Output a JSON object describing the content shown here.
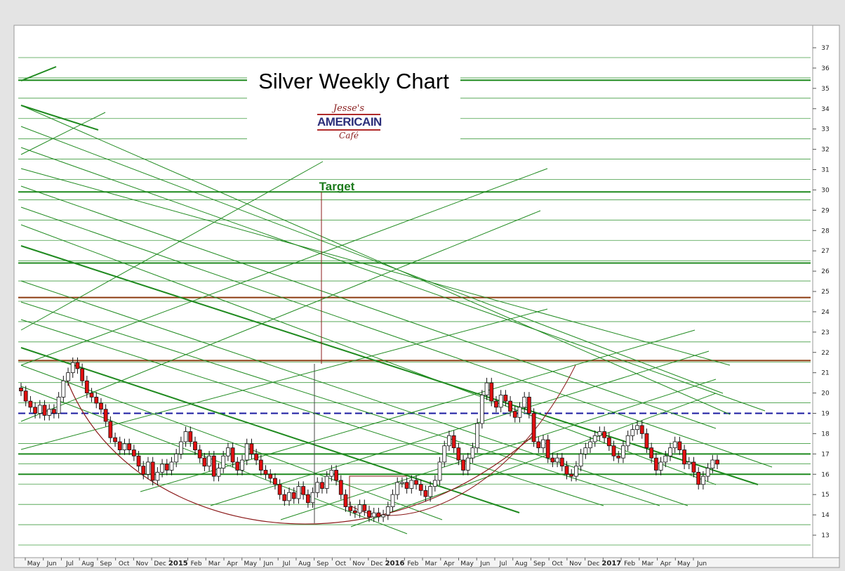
{
  "title": "Silver Weekly Chart",
  "logo": {
    "top": "Jesse's",
    "middle": "AMERICAIN",
    "bottom": "Café"
  },
  "target_label": "Target",
  "colors": {
    "up_candle": "#ffffff",
    "down_candle": "#e01010",
    "trendline": "#1f8a1f",
    "resistance": "#8b3a0f",
    "support": "#1a1aa0",
    "arc": "#8b1a1a"
  },
  "chart_data": {
    "type": "candlestick",
    "title": "Silver Weekly Chart",
    "y_axis": {
      "ticks": [
        13,
        14,
        15,
        16,
        17,
        18,
        19,
        20,
        21,
        22,
        23,
        24,
        25,
        26,
        27,
        28,
        29,
        30,
        31,
        32,
        33,
        34,
        35,
        36,
        37
      ],
      "range": [
        12.5,
        37.5
      ],
      "side": "right"
    },
    "x_axis": {
      "labels": [
        "May",
        "Jun",
        "Jul",
        "Aug",
        "Sep",
        "Oct",
        "Nov",
        "Dec",
        "2015",
        "Feb",
        "Mar",
        "Apr",
        "May",
        "Jun",
        "Jul",
        "Aug",
        "Sep",
        "Oct",
        "Nov",
        "Dec",
        "2016",
        "Feb",
        "Mar",
        "Apr",
        "May",
        "Jun",
        "Jul",
        "Aug",
        "Sep",
        "Oct",
        "Nov",
        "Dec",
        "2017",
        "Feb",
        "Mar",
        "Apr",
        "May",
        "Jun"
      ],
      "years": [
        "2015",
        "2016",
        "2017"
      ]
    },
    "horizontal_levels": [
      {
        "value": 21.6,
        "kind": "resistance"
      },
      {
        "value": 24.7,
        "kind": "resistance"
      },
      {
        "value": 19.0,
        "kind": "support"
      },
      {
        "value": 29.9,
        "kind": "trendline"
      },
      {
        "value": 26.4,
        "kind": "trendline"
      },
      {
        "value": 35.4,
        "kind": "trendline"
      },
      {
        "value": 16.0,
        "kind": "trendline"
      },
      {
        "value": 17.0,
        "kind": "trendline"
      }
    ],
    "annotations": [
      {
        "text": "Target",
        "value": 29.9
      }
    ],
    "closes": [
      20.1,
      19.6,
      19.3,
      19.0,
      19.4,
      18.9,
      19.2,
      19.0,
      19.8,
      20.6,
      21.0,
      21.5,
      21.2,
      20.6,
      20.0,
      19.8,
      19.5,
      19.2,
      18.6,
      17.8,
      17.6,
      17.2,
      17.5,
      17.2,
      16.9,
      16.4,
      16.0,
      16.6,
      15.7,
      16.1,
      16.5,
      16.2,
      16.6,
      17.0,
      17.6,
      18.1,
      17.6,
      17.2,
      16.8,
      16.4,
      16.9,
      15.9,
      16.3,
      16.9,
      17.3,
      16.6,
      16.2,
      16.7,
      17.5,
      17.0,
      16.7,
      16.2,
      16.0,
      15.8,
      15.5,
      15.0,
      14.7,
      15.1,
      14.8,
      15.4,
      15.0,
      14.6,
      15.1,
      15.6,
      15.3,
      15.9,
      16.2,
      15.7,
      15.0,
      14.4,
      14.2,
      14.1,
      14.5,
      14.2,
      13.9,
      14.1,
      13.9,
      14.0,
      14.4,
      15.0,
      15.6,
      15.6,
      15.3,
      15.7,
      15.5,
      15.2,
      14.9,
      15.4,
      15.7,
      16.6,
      17.4,
      17.9,
      17.3,
      16.7,
      16.2,
      16.8,
      17.3,
      18.5,
      19.9,
      20.5,
      19.6,
      19.3,
      19.9,
      19.6,
      19.1,
      18.8,
      19.3,
      19.8,
      19.0,
      17.6,
      17.3,
      17.7,
      16.8,
      16.6,
      16.8,
      16.4,
      16.0,
      15.9,
      16.4,
      17.0,
      17.3,
      17.6,
      17.9,
      18.1,
      17.8,
      17.4,
      16.9,
      16.8,
      17.4,
      17.9,
      18.2,
      18.4,
      18.0,
      17.3,
      16.8,
      16.2,
      16.6,
      16.9,
      17.3,
      17.6,
      17.2,
      16.5,
      16.6,
      16.1,
      15.5,
      15.9,
      16.3,
      16.7,
      16.5
    ]
  }
}
